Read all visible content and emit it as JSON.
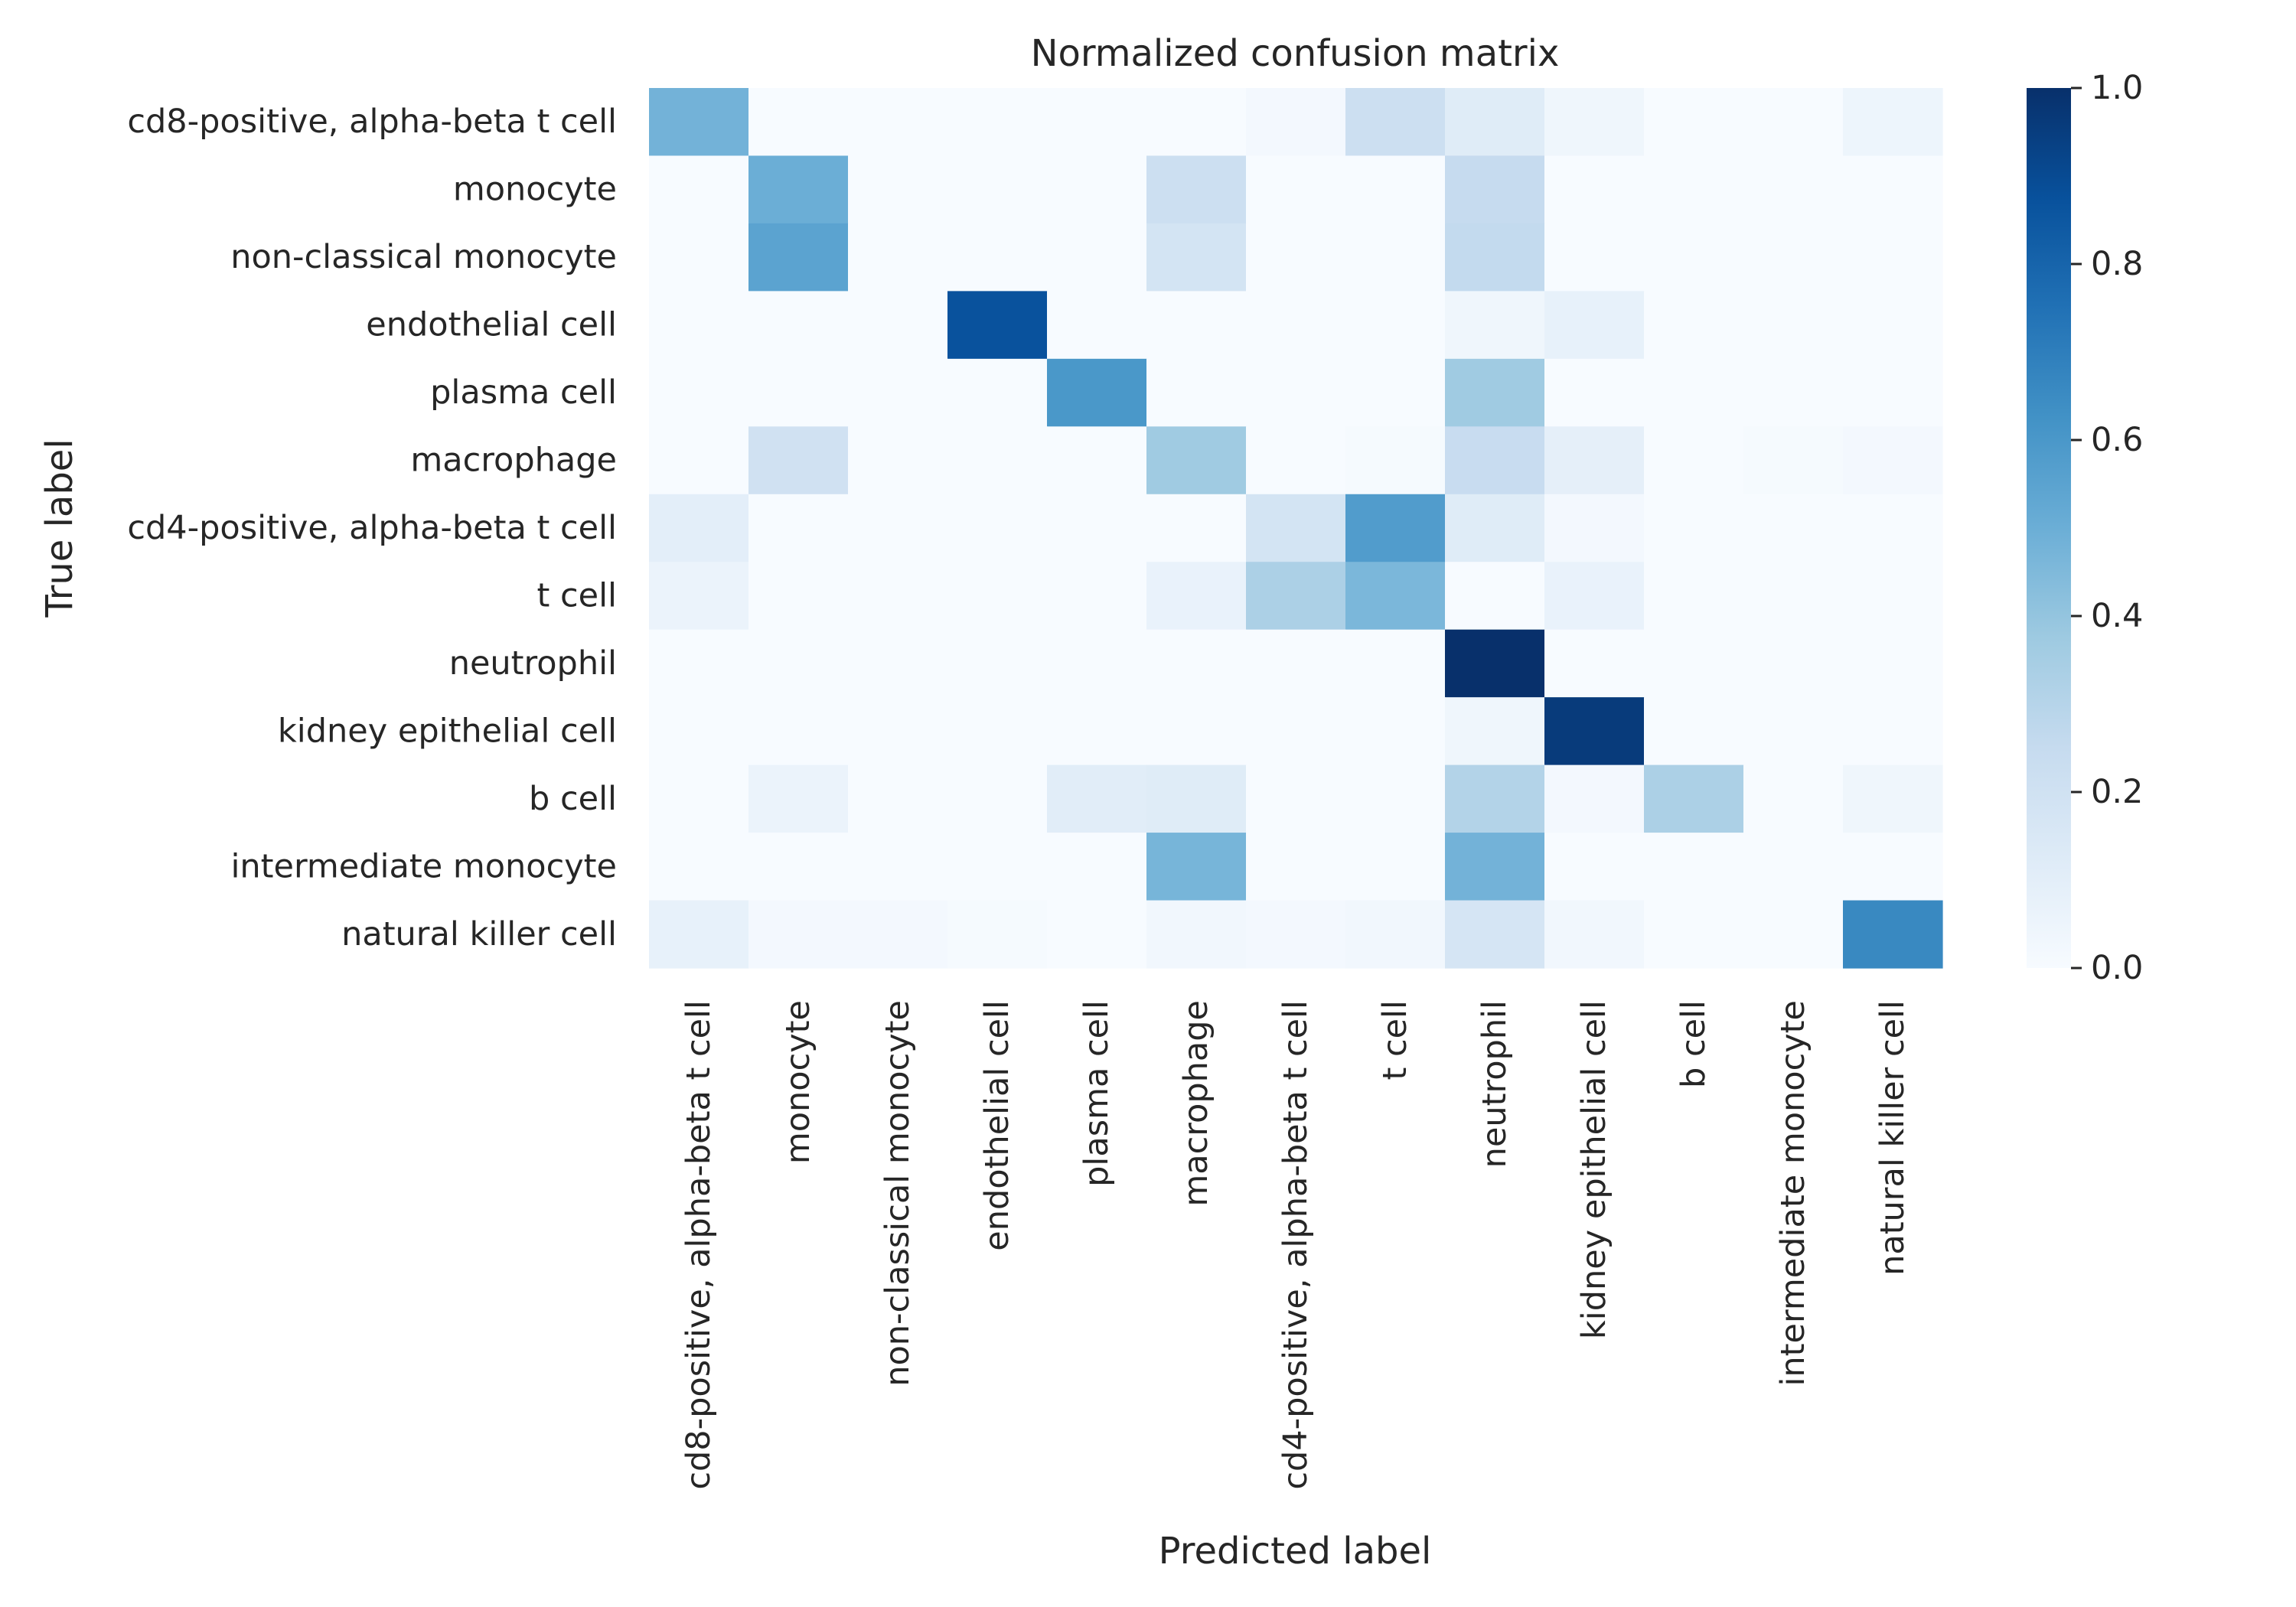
{
  "chart_data": {
    "type": "heatmap",
    "title": "Normalized confusion matrix",
    "xlabel": "Predicted label",
    "ylabel": "True label",
    "x_categories": [
      "cd8-positive, alpha-beta t cell",
      "monocyte",
      "non-classical monocyte",
      "endothelial cell",
      "plasma cell",
      "macrophage",
      "cd4-positive, alpha-beta t cell",
      "t cell",
      "neutrophil",
      "kidney epithelial cell",
      "b cell",
      "intermediate monocyte",
      "natural killer cell"
    ],
    "y_categories": [
      "cd8-positive, alpha-beta t cell",
      "monocyte",
      "non-classical monocyte",
      "endothelial cell",
      "plasma cell",
      "macrophage",
      "cd4-positive, alpha-beta t cell",
      "t cell",
      "neutrophil",
      "kidney epithelial cell",
      "b cell",
      "intermediate monocyte",
      "natural killer cell"
    ],
    "values": [
      [
        0.48,
        0.0,
        0.0,
        0.0,
        0.0,
        0.0,
        0.02,
        0.22,
        0.12,
        0.04,
        0.0,
        0.0,
        0.05
      ],
      [
        0.0,
        0.5,
        0.0,
        0.0,
        0.0,
        0.22,
        0.0,
        0.0,
        0.25,
        0.0,
        0.0,
        0.0,
        0.0
      ],
      [
        0.0,
        0.55,
        0.0,
        0.0,
        0.0,
        0.18,
        0.0,
        0.0,
        0.26,
        0.0,
        0.0,
        0.0,
        0.0
      ],
      [
        0.0,
        0.0,
        0.0,
        0.87,
        0.0,
        0.0,
        0.0,
        0.0,
        0.04,
        0.08,
        0.0,
        0.0,
        0.0
      ],
      [
        0.0,
        0.0,
        0.0,
        0.0,
        0.6,
        0.0,
        0.0,
        0.0,
        0.37,
        0.0,
        0.0,
        0.0,
        0.0
      ],
      [
        0.0,
        0.2,
        0.0,
        0.0,
        0.0,
        0.37,
        0.0,
        0.01,
        0.24,
        0.09,
        0.0,
        0.01,
        0.02
      ],
      [
        0.1,
        0.0,
        0.0,
        0.0,
        0.0,
        0.0,
        0.18,
        0.58,
        0.12,
        0.02,
        0.0,
        0.0,
        0.0
      ],
      [
        0.06,
        0.0,
        0.0,
        0.0,
        0.0,
        0.07,
        0.33,
        0.46,
        0.0,
        0.07,
        0.0,
        0.0,
        0.0
      ],
      [
        0.0,
        0.0,
        0.0,
        0.0,
        0.0,
        0.0,
        0.0,
        0.0,
        1.0,
        0.0,
        0.0,
        0.0,
        0.0
      ],
      [
        0.0,
        0.0,
        0.0,
        0.0,
        0.0,
        0.0,
        0.0,
        0.0,
        0.04,
        0.96,
        0.0,
        0.0,
        0.0
      ],
      [
        0.0,
        0.06,
        0.0,
        0.0,
        0.11,
        0.12,
        0.0,
        0.0,
        0.31,
        0.02,
        0.33,
        0.0,
        0.04
      ],
      [
        0.0,
        0.0,
        0.0,
        0.0,
        0.0,
        0.47,
        0.0,
        0.0,
        0.48,
        0.0,
        0.0,
        0.0,
        0.0
      ],
      [
        0.08,
        0.02,
        0.02,
        0.01,
        0.0,
        0.03,
        0.02,
        0.03,
        0.17,
        0.03,
        0.0,
        0.0,
        0.66
      ]
    ],
    "vmin": 0,
    "vmax": 1,
    "colormap": "Blues",
    "colorbar_ticks": [
      0,
      0.2,
      0.4,
      0.6,
      0.8,
      1.0
    ],
    "colorbar_tick_labels": [
      "0.0",
      "0.2",
      "0.4",
      "0.6",
      "0.8",
      "1.0"
    ],
    "grid": false,
    "colorbar_position": "right"
  }
}
